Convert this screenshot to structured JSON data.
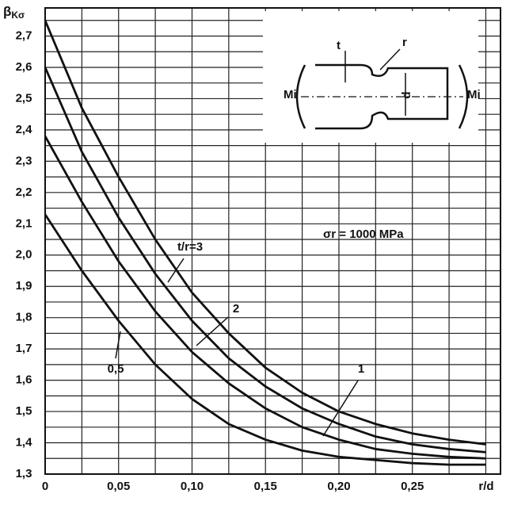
{
  "chart_data": {
    "type": "line",
    "y_label": "β",
    "y_label_sub": "Kσ",
    "x_label": "r/d",
    "annotation": "σr = 1000 MPa",
    "inset_labels": [
      "Mi",
      "Mi",
      "t",
      "r",
      "d"
    ],
    "x": [
      0,
      0.025,
      0.05,
      0.075,
      0.1,
      0.125,
      0.15,
      0.175,
      0.2,
      0.225,
      0.25,
      0.275,
      0.3
    ],
    "series": [
      {
        "name": "t/r=3",
        "color": "#111111",
        "values": [
          2.75,
          2.47,
          2.25,
          2.05,
          1.88,
          1.75,
          1.64,
          1.56,
          1.5,
          1.46,
          1.43,
          1.41,
          1.395
        ]
      },
      {
        "name": "2",
        "color": "#111111",
        "values": [
          2.6,
          2.33,
          2.12,
          1.94,
          1.79,
          1.67,
          1.58,
          1.51,
          1.46,
          1.42,
          1.395,
          1.38,
          1.37
        ]
      },
      {
        "name": "1",
        "color": "#111111",
        "values": [
          2.38,
          2.17,
          1.98,
          1.82,
          1.69,
          1.59,
          1.51,
          1.45,
          1.41,
          1.38,
          1.365,
          1.355,
          1.35
        ]
      },
      {
        "name": "0,5",
        "color": "#111111",
        "values": [
          2.13,
          1.95,
          1.79,
          1.65,
          1.54,
          1.46,
          1.41,
          1.375,
          1.355,
          1.345,
          1.335,
          1.33,
          1.33
        ]
      }
    ],
    "xlim": [
      0,
      0.31
    ],
    "ylim": [
      1.3,
      2.79
    ],
    "xticks": [
      {
        "value": 0,
        "label": "0"
      },
      {
        "value": 0.05,
        "label": "0,05"
      },
      {
        "value": 0.1,
        "label": "0,10"
      },
      {
        "value": 0.15,
        "label": "0,15"
      },
      {
        "value": 0.2,
        "label": "0,20"
      },
      {
        "value": 0.25,
        "label": "0,25"
      }
    ],
    "yticks": [
      {
        "value": 1.3,
        "label": "1,3"
      },
      {
        "value": 1.4,
        "label": "1,4"
      },
      {
        "value": 1.5,
        "label": "1,5"
      },
      {
        "value": 1.6,
        "label": "1,6"
      },
      {
        "value": 1.7,
        "label": "1,7"
      },
      {
        "value": 1.8,
        "label": "1,8"
      },
      {
        "value": 1.9,
        "label": "1,9"
      },
      {
        "value": 2.0,
        "label": "2,0"
      },
      {
        "value": 2.1,
        "label": "2,1"
      },
      {
        "value": 2.2,
        "label": "2,2"
      },
      {
        "value": 2.3,
        "label": "2,3"
      },
      {
        "value": 2.4,
        "label": "2,4"
      },
      {
        "value": 2.5,
        "label": "2,5"
      },
      {
        "value": 2.6,
        "label": "2,6"
      },
      {
        "value": 2.7,
        "label": "2,7"
      }
    ],
    "xgrid": [
      0.025,
      0.075,
      0.125,
      0.175,
      0.225,
      0.275,
      0.3
    ],
    "ygrid": [
      1.35,
      1.45,
      1.55,
      1.65,
      1.75,
      1.85,
      1.95,
      2.05,
      2.15,
      2.25,
      2.35,
      2.45,
      2.55,
      2.65,
      2.75
    ],
    "grid": true
  }
}
